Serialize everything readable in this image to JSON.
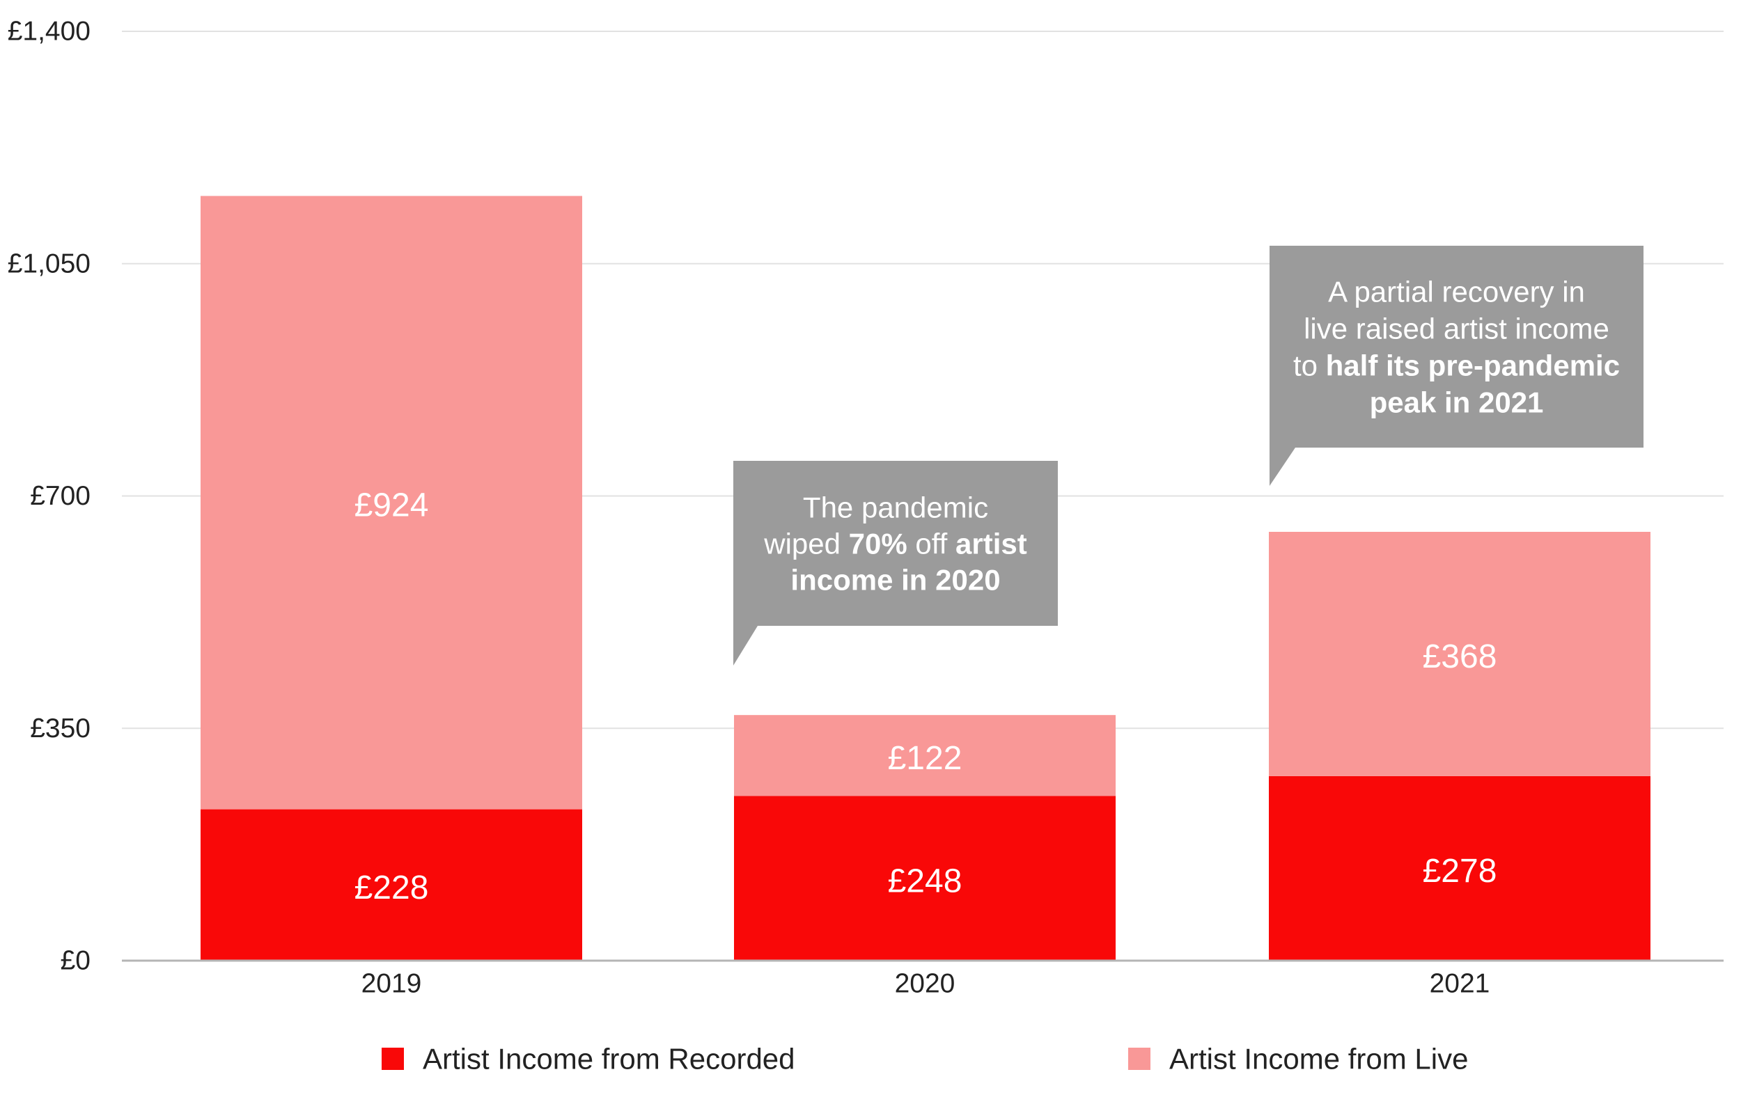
{
  "chart_data": {
    "type": "bar",
    "stacked": true,
    "categories": [
      "2019",
      "2020",
      "2021"
    ],
    "series": [
      {
        "name": "Artist Income from Recorded",
        "values": [
          228,
          248,
          278
        ],
        "labels": [
          "£228",
          "£248",
          "£278"
        ],
        "color": "#f90808"
      },
      {
        "name": "Artist Income from Live",
        "values": [
          924,
          122,
          368
        ],
        "labels": [
          "£924",
          "£122",
          "£368"
        ],
        "color": "#f99897"
      }
    ],
    "ylim": [
      0,
      1400
    ],
    "yticks": [
      0,
      350,
      700,
      1050,
      1400
    ],
    "ytick_labels": [
      "£0",
      "£350",
      "£700",
      "£1,050",
      "£1,400"
    ],
    "grid": true,
    "legend_position": "bottom",
    "callout_color": "#9b9b9b",
    "annotations": [
      {
        "category": "2020",
        "lines": [
          [
            {
              "text": "The pandemic",
              "bold": false
            }
          ],
          [
            {
              "text": "wiped ",
              "bold": false
            },
            {
              "text": "70%",
              "bold": true
            },
            {
              "text": " off ",
              "bold": false
            },
            {
              "text": "artist",
              "bold": true
            }
          ],
          [
            {
              "text": "income in 2020",
              "bold": true
            }
          ]
        ]
      },
      {
        "category": "2021",
        "lines": [
          [
            {
              "text": "A partial recovery in",
              "bold": false
            }
          ],
          [
            {
              "text": "live raised artist income",
              "bold": false
            }
          ],
          [
            {
              "text": "to ",
              "bold": false
            },
            {
              "text": "half its pre-pandemic",
              "bold": true
            }
          ],
          [
            {
              "text": "peak in 2021",
              "bold": true
            }
          ]
        ]
      }
    ]
  }
}
